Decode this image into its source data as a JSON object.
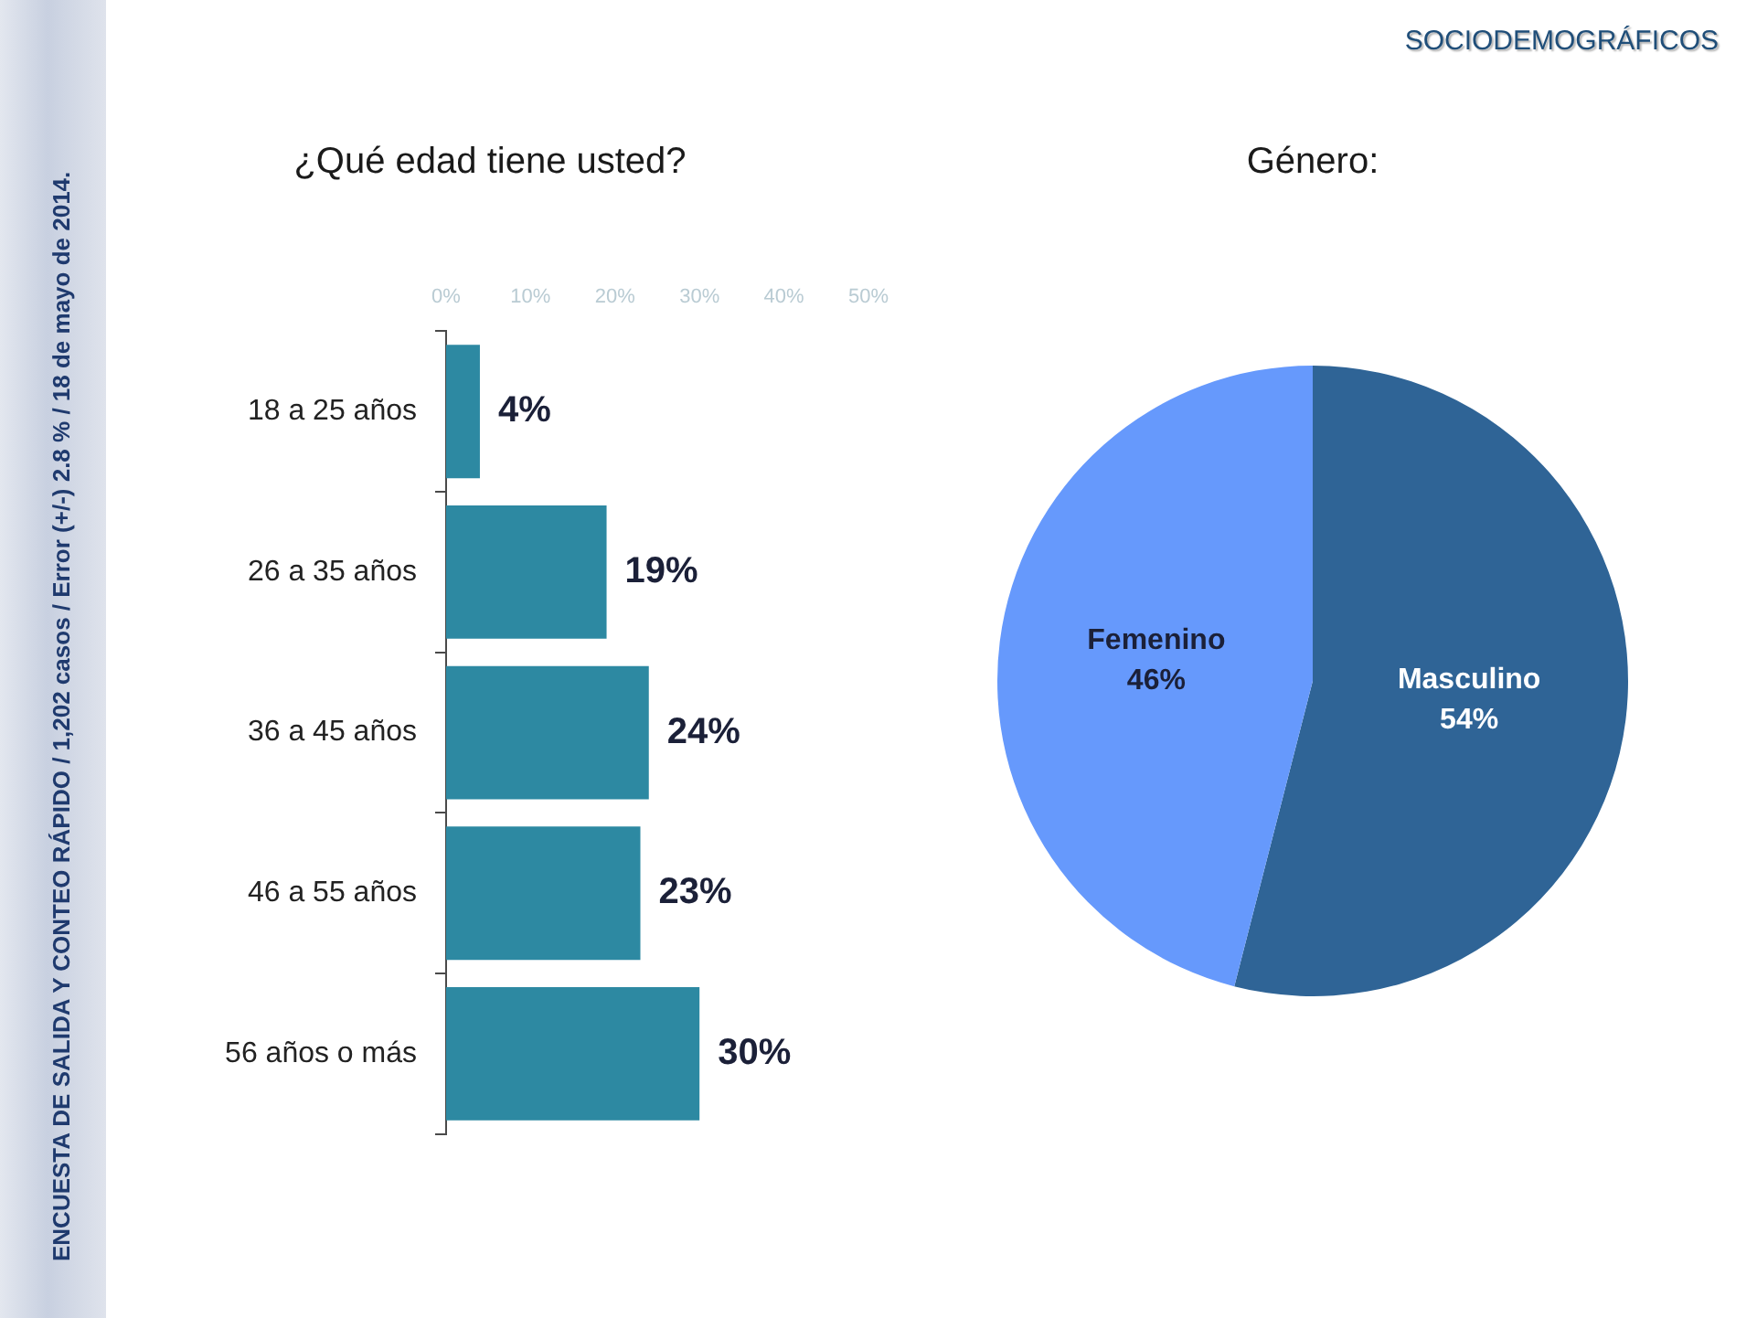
{
  "chart_data": [
    {
      "type": "bar",
      "orientation": "horizontal",
      "title": "¿Qué edad tiene usted?",
      "categories": [
        "18 a 25 años",
        "26 a 35 años",
        "36 a 45 años",
        "46 a 55 años",
        "56 años o más"
      ],
      "values": [
        4,
        19,
        24,
        23,
        30
      ],
      "color": "#2d89a2",
      "value_labels": [
        "4%",
        "19%",
        "24%",
        "23%",
        "30%"
      ],
      "xlim": [
        0,
        50
      ],
      "xticks": [
        {
          "value": 0,
          "label": "0%"
        },
        {
          "value": 10,
          "label": "10%"
        },
        {
          "value": 20,
          "label": "20%"
        },
        {
          "value": 30,
          "label": "30%"
        },
        {
          "value": 40,
          "label": "40%"
        },
        {
          "value": 50,
          "label": "50%"
        }
      ],
      "legend": false,
      "annotations": [
        "ENCUESTA DE SALIDA Y CONTEO RÁPIDO / 1,202 casos / Error (+/-)  2.8 % / 18 de mayo de 2014."
      ]
    },
    {
      "type": "pie",
      "title": "Género:",
      "categories": [
        "Masculino",
        "Femenino"
      ],
      "values": [
        54,
        46
      ],
      "colors": [
        "#2f6496",
        "#6699fc"
      ],
      "value_labels": [
        "54%",
        "46%"
      ],
      "legend": false,
      "annotations": [
        "SOCIODEMOGRÁFICOS"
      ]
    }
  ]
}
